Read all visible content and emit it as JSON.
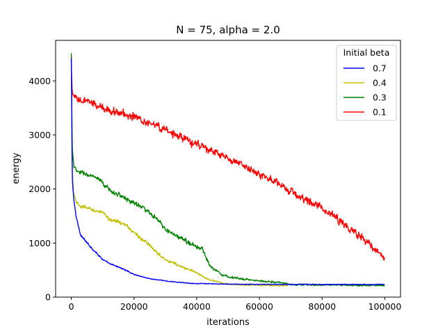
{
  "chart_data": {
    "type": "line",
    "title": "N = 75, alpha = 2.0",
    "xlabel": "iterations",
    "ylabel": "energy",
    "xlim": [
      -5000,
      105000
    ],
    "ylim": [
      0,
      4750
    ],
    "xticks": [
      0,
      20000,
      40000,
      60000,
      80000,
      100000
    ],
    "yticks": [
      0,
      1000,
      2000,
      3000,
      4000
    ],
    "grid": false,
    "legend": {
      "title": "Initial beta",
      "placement": "top-right"
    },
    "series": [
      {
        "name": "0.7",
        "color": "#0000ff",
        "end_x": 100000,
        "noise": 25,
        "points": [
          [
            0,
            4400
          ],
          [
            300,
            2200
          ],
          [
            800,
            1800
          ],
          [
            1500,
            1500
          ],
          [
            3000,
            1150
          ],
          [
            5000,
            1000
          ],
          [
            8000,
            820
          ],
          [
            10000,
            700
          ],
          [
            12000,
            620
          ],
          [
            15000,
            560
          ],
          [
            18000,
            480
          ],
          [
            20000,
            420
          ],
          [
            25000,
            340
          ],
          [
            30000,
            300
          ],
          [
            35000,
            270
          ],
          [
            40000,
            250
          ],
          [
            50000,
            240
          ],
          [
            60000,
            235
          ],
          [
            80000,
            235
          ],
          [
            100000,
            235
          ]
        ]
      },
      {
        "name": "0.4",
        "color": "#bfbf00",
        "end_x": 69000,
        "noise": 45,
        "points": [
          [
            0,
            4350
          ],
          [
            300,
            2300
          ],
          [
            800,
            1900
          ],
          [
            1500,
            1750
          ],
          [
            3000,
            1680
          ],
          [
            5000,
            1650
          ],
          [
            8000,
            1600
          ],
          [
            10000,
            1550
          ],
          [
            12000,
            1450
          ],
          [
            15000,
            1400
          ],
          [
            18000,
            1300
          ],
          [
            20000,
            1200
          ],
          [
            22000,
            1100
          ],
          [
            25000,
            950
          ],
          [
            28000,
            800
          ],
          [
            30000,
            700
          ],
          [
            33000,
            620
          ],
          [
            35000,
            560
          ],
          [
            38000,
            500
          ],
          [
            40000,
            450
          ],
          [
            43000,
            350
          ],
          [
            45000,
            310
          ],
          [
            48000,
            260
          ],
          [
            50000,
            240
          ],
          [
            55000,
            225
          ],
          [
            60000,
            220
          ],
          [
            65000,
            215
          ],
          [
            69000,
            215
          ]
        ]
      },
      {
        "name": "0.3",
        "color": "#008000",
        "end_x": 100000,
        "noise": 55,
        "points": [
          [
            0,
            4500
          ],
          [
            300,
            2800
          ],
          [
            800,
            2400
          ],
          [
            2000,
            2320
          ],
          [
            5000,
            2270
          ],
          [
            8000,
            2200
          ],
          [
            10000,
            2100
          ],
          [
            13000,
            1950
          ],
          [
            15000,
            1900
          ],
          [
            18000,
            1800
          ],
          [
            20000,
            1750
          ],
          [
            23000,
            1650
          ],
          [
            25000,
            1550
          ],
          [
            28000,
            1400
          ],
          [
            30000,
            1250
          ],
          [
            33000,
            1150
          ],
          [
            35000,
            1080
          ],
          [
            38000,
            1000
          ],
          [
            40000,
            930
          ],
          [
            42000,
            880
          ],
          [
            44000,
            600
          ],
          [
            46000,
            500
          ],
          [
            48000,
            420
          ],
          [
            50000,
            380
          ],
          [
            55000,
            330
          ],
          [
            60000,
            300
          ],
          [
            65000,
            280
          ],
          [
            68000,
            260
          ],
          [
            70000,
            230
          ],
          [
            80000,
            225
          ],
          [
            90000,
            220
          ],
          [
            100000,
            215
          ]
        ]
      },
      {
        "name": "0.1",
        "color": "#ff0000",
        "end_x": 100000,
        "noise": 90,
        "points": [
          [
            0,
            4450
          ],
          [
            200,
            3800
          ],
          [
            600,
            3700
          ],
          [
            2000,
            3650
          ],
          [
            5000,
            3620
          ],
          [
            10000,
            3500
          ],
          [
            15000,
            3420
          ],
          [
            20000,
            3330
          ],
          [
            25000,
            3220
          ],
          [
            30000,
            3100
          ],
          [
            35000,
            2950
          ],
          [
            40000,
            2830
          ],
          [
            45000,
            2700
          ],
          [
            50000,
            2550
          ],
          [
            55000,
            2430
          ],
          [
            60000,
            2280
          ],
          [
            65000,
            2120
          ],
          [
            70000,
            1950
          ],
          [
            75000,
            1800
          ],
          [
            80000,
            1650
          ],
          [
            85000,
            1450
          ],
          [
            90000,
            1200
          ],
          [
            95000,
            1000
          ],
          [
            98000,
            850
          ],
          [
            100000,
            730
          ]
        ]
      }
    ]
  }
}
